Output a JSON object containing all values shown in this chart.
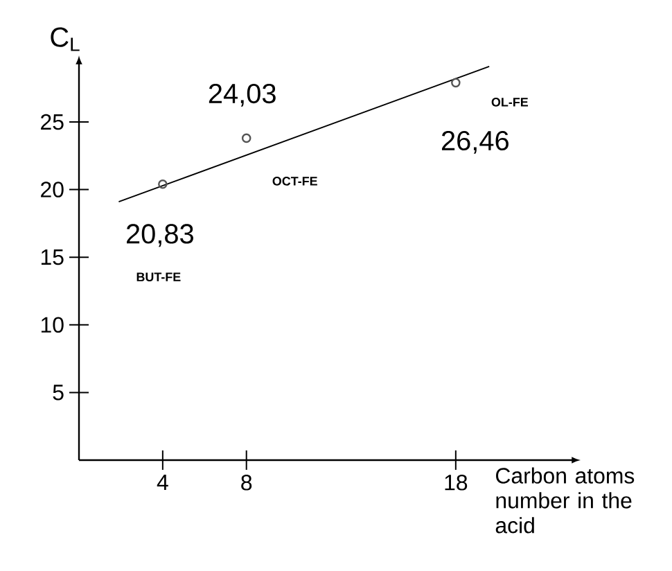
{
  "chart_data": {
    "type": "scatter",
    "xlabel": "Carbon atoms number in the acid",
    "ylabel": "C$_{L}$",
    "xlim": [
      0,
      23.5
    ],
    "ylim": [
      0,
      29.2
    ],
    "xticks": [
      4,
      8,
      18
    ],
    "yticks": [
      5,
      10,
      15,
      20,
      25
    ],
    "marker": "circle",
    "series": [
      {
        "color": "#555555",
        "x": [
          4,
          8,
          18
        ],
        "values": [
          20.4,
          23.8,
          27.9
        ]
      },
      {
        "type": "line",
        "color": "#000000",
        "marker": "none",
        "x": [
          1.9,
          19.6
        ],
        "values": [
          19.1,
          29.1
        ]
      }
    ],
    "annotations": [
      "20,83",
      "BUT-FE",
      "24,03",
      "OCT-FE",
      "26,46",
      "OL-FE"
    ]
  }
}
